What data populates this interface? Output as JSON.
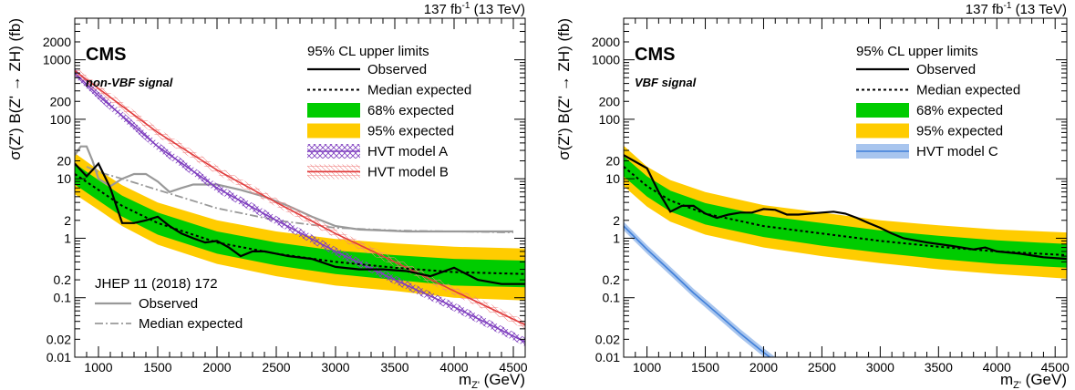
{
  "chart_data": [
    {
      "type": "line",
      "experiment": "CMS",
      "signal_label": "non-VBF signal",
      "luminosity": "137 fb",
      "luminosity_sup": "-1",
      "energy": "(13 TeV)",
      "xlabel": "m",
      "xlabel_sub": "Z'",
      "xlabel_unit": "(GeV)",
      "ylabel": "σ(Z') B(Z' → ZH) (fb)",
      "xlim": [
        800,
        4600
      ],
      "ylim": [
        0.01,
        5000
      ],
      "y_log_scale": true,
      "x_ticks": [
        1000,
        1500,
        2000,
        2500,
        3000,
        3500,
        4000,
        4500
      ],
      "x_tick_labels": [
        "1000",
        "1500",
        "2000",
        "2500",
        "3000",
        "3500",
        "4000",
        "4500"
      ],
      "y_ticks": [
        0.01,
        0.02,
        0.1,
        0.2,
        1,
        2,
        10,
        20,
        100,
        200,
        1000,
        2000
      ],
      "y_tick_labels": [
        "0.01",
        "0.02",
        "0.1",
        "0.2",
        "1",
        "2",
        "10",
        "20",
        "100",
        "200",
        "1000",
        "2000"
      ],
      "legend_title": "95% CL upper limits",
      "legend": [
        "Observed",
        "Median expected",
        "68% expected",
        "95% expected",
        "HVT model A",
        "HVT model B"
      ],
      "legend2_title": "JHEP 11 (2018) 172",
      "legend2": [
        "Observed",
        "Median expected"
      ],
      "series": [
        {
          "name": "Observed",
          "role": "observed",
          "color": "#000000",
          "x": [
            800,
            900,
            1000,
            1100,
            1200,
            1300,
            1400,
            1500,
            1600,
            1700,
            1800,
            1900,
            2000,
            2100,
            2200,
            2300,
            2400,
            2500,
            2600,
            2800,
            3000,
            3200,
            3400,
            3600,
            3800,
            4000,
            4200,
            4400,
            4600
          ],
          "y": [
            18,
            11,
            18,
            7,
            1.8,
            1.8,
            2.0,
            2.3,
            1.6,
            1.2,
            1.0,
            0.85,
            0.9,
            0.7,
            0.5,
            0.6,
            0.6,
            0.55,
            0.5,
            0.45,
            0.33,
            0.3,
            0.3,
            0.28,
            0.23,
            0.32,
            0.2,
            0.17,
            0.17
          ]
        },
        {
          "name": "Median expected",
          "role": "expected",
          "color": "#000000",
          "x": [
            800,
            1000,
            1200,
            1500,
            2000,
            2500,
            3000,
            3500,
            4000,
            4600
          ],
          "y": [
            12,
            6.5,
            3.5,
            1.8,
            0.85,
            0.55,
            0.4,
            0.32,
            0.27,
            0.25
          ]
        },
        {
          "name": "68% expected",
          "role": "band",
          "color": "#00cc00",
          "x": [
            800,
            1000,
            1200,
            1500,
            2000,
            2500,
            3000,
            3500,
            4000,
            4600
          ],
          "low": [
            8,
            4.3,
            2.3,
            1.15,
            0.55,
            0.35,
            0.25,
            0.2,
            0.16,
            0.15
          ],
          "high": [
            18,
            9.5,
            5.2,
            2.7,
            1.3,
            0.85,
            0.62,
            0.52,
            0.45,
            0.42
          ]
        },
        {
          "name": "95% expected",
          "role": "band",
          "color": "#ffcc00",
          "x": [
            800,
            1000,
            1200,
            1500,
            2000,
            2500,
            3000,
            3500,
            4000,
            4600
          ],
          "low": [
            5.5,
            3.0,
            1.6,
            0.78,
            0.37,
            0.23,
            0.16,
            0.13,
            0.1,
            0.09
          ],
          "high": [
            27,
            14,
            7.8,
            4.0,
            2.0,
            1.3,
            0.97,
            0.82,
            0.72,
            0.67
          ]
        },
        {
          "name": "HVT model A",
          "role": "theory",
          "color": "#7f3fbf",
          "x": [
            800,
            1000,
            1500,
            2000,
            2500,
            3000,
            3500,
            4000,
            4600
          ],
          "y": [
            600,
            250,
            35,
            7,
            2,
            0.6,
            0.2,
            0.07,
            0.018
          ]
        },
        {
          "name": "HVT model B",
          "role": "theory",
          "color": "#e03c3c",
          "x": [
            800,
            1000,
            1500,
            2000,
            2500,
            3000,
            3500,
            4000,
            4600
          ],
          "y": [
            650,
            330,
            60,
            14,
            4,
            1.2,
            0.4,
            0.13,
            0.035
          ]
        },
        {
          "name": "Observed",
          "role": "ref-observed",
          "color": "#999999",
          "x": [
            800,
            850,
            900,
            950,
            1000,
            1100,
            1200,
            1300,
            1400,
            1500,
            1600,
            1700,
            1800,
            1900,
            2000,
            2200,
            2400,
            2600,
            2800,
            3000,
            3200,
            3400,
            3600,
            4000,
            4500
          ],
          "y": [
            25,
            35,
            35,
            20,
            10,
            7.5,
            10,
            12,
            12,
            9,
            6,
            7,
            8,
            8,
            8,
            6.5,
            5,
            3.5,
            2.3,
            1.6,
            1.4,
            1.35,
            1.3,
            1.3,
            1.3
          ]
        },
        {
          "name": "Median expected",
          "role": "ref-expected",
          "color": "#999999",
          "x": [
            900,
            1000,
            1200,
            1500,
            2000,
            2500,
            3000,
            3500,
            4000,
            4500
          ],
          "y": [
            16,
            13,
            10,
            6.5,
            3.2,
            2.0,
            1.5,
            1.35,
            1.3,
            1.25
          ]
        }
      ]
    },
    {
      "type": "line",
      "experiment": "CMS",
      "signal_label": "VBF signal",
      "luminosity": "137 fb",
      "luminosity_sup": "-1",
      "energy": "(13 TeV)",
      "xlabel": "m",
      "xlabel_sub": "Z'",
      "xlabel_unit": "(GeV)",
      "ylabel": "σ(Z') B(Z' → ZH) (fb)",
      "xlim": [
        800,
        4600
      ],
      "ylim": [
        0.01,
        5000
      ],
      "y_log_scale": true,
      "x_ticks": [
        1000,
        1500,
        2000,
        2500,
        3000,
        3500,
        4000,
        4500
      ],
      "x_tick_labels": [
        "1000",
        "1500",
        "2000",
        "2500",
        "3000",
        "3500",
        "4000",
        "4500"
      ],
      "y_ticks": [
        0.01,
        0.02,
        0.1,
        0.2,
        1,
        2,
        10,
        20,
        100,
        200,
        1000,
        2000
      ],
      "y_tick_labels": [
        "0.01",
        "0.02",
        "0.1",
        "0.2",
        "1",
        "2",
        "10",
        "20",
        "100",
        "200",
        "1000",
        "2000"
      ],
      "legend_title": "95% CL upper limits",
      "legend": [
        "Observed",
        "Median expected",
        "68% expected",
        "95% expected",
        "HVT model C"
      ],
      "series": [
        {
          "name": "Observed",
          "role": "observed",
          "color": "#000000",
          "x": [
            800,
            1000,
            1100,
            1200,
            1300,
            1400,
            1500,
            1600,
            1700,
            1800,
            1900,
            2000,
            2100,
            2200,
            2300,
            2400,
            2500,
            2600,
            2700,
            2800,
            2900,
            3000,
            3100,
            3200,
            3400,
            3600,
            3800,
            3900,
            4000,
            4200,
            4400,
            4600
          ],
          "y": [
            25,
            15,
            6,
            2.8,
            3.5,
            3.5,
            2.6,
            2.2,
            2.5,
            2.7,
            2.7,
            3.1,
            3.0,
            2.5,
            2.5,
            2.6,
            2.7,
            2.8,
            2.6,
            2.2,
            1.8,
            1.5,
            1.2,
            1.0,
            0.85,
            0.75,
            0.65,
            0.7,
            0.6,
            0.55,
            0.48,
            0.45
          ]
        },
        {
          "name": "Median expected",
          "role": "expected",
          "color": "#000000",
          "x": [
            800,
            1000,
            1200,
            1500,
            2000,
            2500,
            3000,
            3500,
            4000,
            4600
          ],
          "y": [
            16,
            7.5,
            4.3,
            2.6,
            1.6,
            1.2,
            0.9,
            0.72,
            0.6,
            0.52
          ]
        },
        {
          "name": "68% expected",
          "role": "band",
          "color": "#00cc00",
          "x": [
            800,
            1000,
            1200,
            1500,
            2000,
            2500,
            3000,
            3500,
            4000,
            4600
          ],
          "low": [
            11,
            5,
            2.8,
            1.7,
            1.05,
            0.75,
            0.57,
            0.45,
            0.37,
            0.32
          ],
          "high": [
            24,
            11,
            6.3,
            3.9,
            2.4,
            1.8,
            1.35,
            1.1,
            0.92,
            0.8
          ]
        },
        {
          "name": "95% expected",
          "role": "band",
          "color": "#ffcc00",
          "x": [
            800,
            1000,
            1200,
            1500,
            2000,
            2500,
            3000,
            3500,
            4000,
            4600
          ],
          "low": [
            7.5,
            3.4,
            1.9,
            1.15,
            0.7,
            0.5,
            0.38,
            0.3,
            0.25,
            0.21
          ],
          "high": [
            36,
            16,
            9.5,
            6.0,
            3.6,
            2.7,
            2.0,
            1.65,
            1.4,
            1.25
          ]
        },
        {
          "name": "HVT model C",
          "role": "theory",
          "color": "#3f7fd9",
          "x": [
            800,
            1000,
            1200,
            1400,
            1600,
            1800,
            2000,
            2100
          ],
          "y": [
            1.6,
            0.65,
            0.28,
            0.12,
            0.055,
            0.025,
            0.012,
            0.0085
          ]
        }
      ]
    }
  ]
}
